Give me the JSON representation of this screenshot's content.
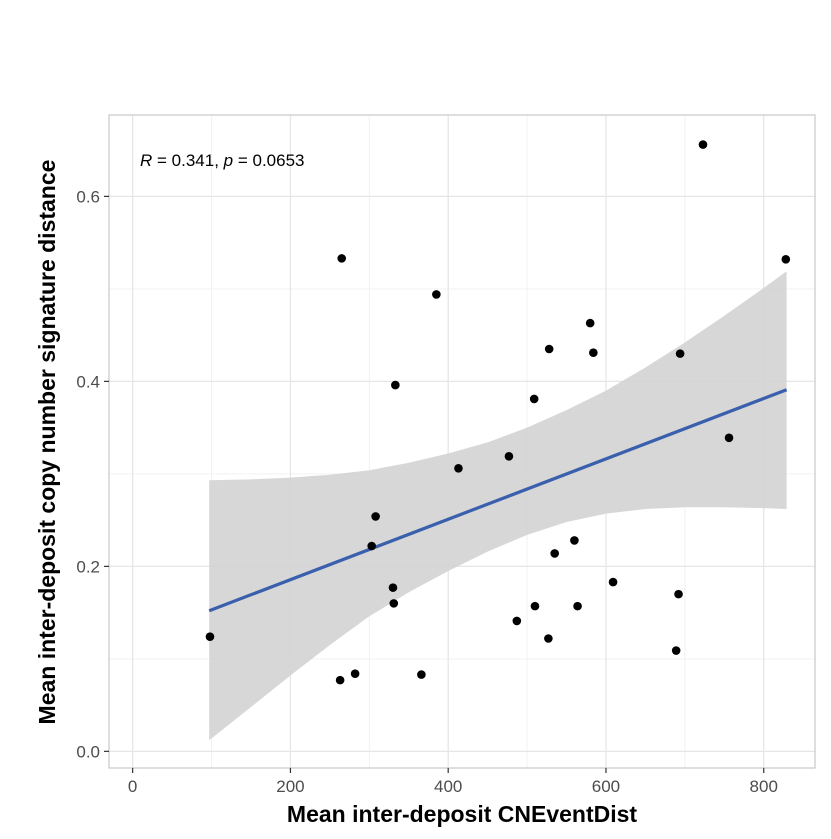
{
  "chart_data": {
    "type": "scatter",
    "xlabel": "Mean inter-deposit CNEventDist",
    "ylabel": "Mean inter-deposit copy number signature distance",
    "xlim": [
      -30,
      865
    ],
    "ylim": [
      -0.018,
      0.688
    ],
    "x_ticks": [
      0,
      200,
      400,
      600,
      800
    ],
    "x_tick_labels": [
      "0",
      "200",
      "400",
      "600",
      "800"
    ],
    "y_ticks": [
      0.0,
      0.2,
      0.4,
      0.6
    ],
    "y_tick_labels": [
      "0.0",
      "0.2",
      "0.4",
      "0.6"
    ],
    "grid": true,
    "annotation": {
      "r_symbol": "R",
      "r_text": " = 0.341, ",
      "p_symbol": "p",
      "p_text": " = 0.0653"
    },
    "points": [
      {
        "x": 98,
        "y": 0.124
      },
      {
        "x": 263,
        "y": 0.077
      },
      {
        "x": 265,
        "y": 0.533
      },
      {
        "x": 282,
        "y": 0.084
      },
      {
        "x": 303,
        "y": 0.222
      },
      {
        "x": 308,
        "y": 0.254
      },
      {
        "x": 330,
        "y": 0.177
      },
      {
        "x": 331,
        "y": 0.16
      },
      {
        "x": 333,
        "y": 0.396
      },
      {
        "x": 366,
        "y": 0.083
      },
      {
        "x": 385,
        "y": 0.494
      },
      {
        "x": 413,
        "y": 0.306
      },
      {
        "x": 477,
        "y": 0.319
      },
      {
        "x": 487,
        "y": 0.141
      },
      {
        "x": 509,
        "y": 0.381
      },
      {
        "x": 510,
        "y": 0.157
      },
      {
        "x": 527,
        "y": 0.122
      },
      {
        "x": 528,
        "y": 0.435
      },
      {
        "x": 535,
        "y": 0.214
      },
      {
        "x": 560,
        "y": 0.228
      },
      {
        "x": 564,
        "y": 0.157
      },
      {
        "x": 580,
        "y": 0.463
      },
      {
        "x": 584,
        "y": 0.431
      },
      {
        "x": 609,
        "y": 0.183
      },
      {
        "x": 689,
        "y": 0.109
      },
      {
        "x": 692,
        "y": 0.17
      },
      {
        "x": 694,
        "y": 0.43
      },
      {
        "x": 723,
        "y": 0.656
      },
      {
        "x": 756,
        "y": 0.339
      },
      {
        "x": 828,
        "y": 0.532
      }
    ],
    "regression": {
      "x": [
        97,
        829
      ],
      "y": [
        0.152,
        0.391
      ]
    },
    "confidence_band": {
      "x": [
        97,
        150,
        200,
        250,
        300,
        350,
        400,
        450,
        500,
        550,
        600,
        650,
        700,
        750,
        800,
        829
      ],
      "lower": [
        0.012,
        0.048,
        0.082,
        0.115,
        0.146,
        0.172,
        0.195,
        0.216,
        0.234,
        0.248,
        0.257,
        0.262,
        0.264,
        0.264,
        0.263,
        0.262
      ],
      "upper": [
        0.293,
        0.294,
        0.296,
        0.299,
        0.304,
        0.312,
        0.322,
        0.334,
        0.35,
        0.369,
        0.39,
        0.415,
        0.442,
        0.471,
        0.501,
        0.519
      ]
    },
    "colors": {
      "point": "#000000",
      "line": "#3a5fad",
      "band": "#d3d3d3",
      "grid_major": "#e6e6e6",
      "grid_minor": "#f2f2f2",
      "border": "#c8c8c8"
    }
  }
}
